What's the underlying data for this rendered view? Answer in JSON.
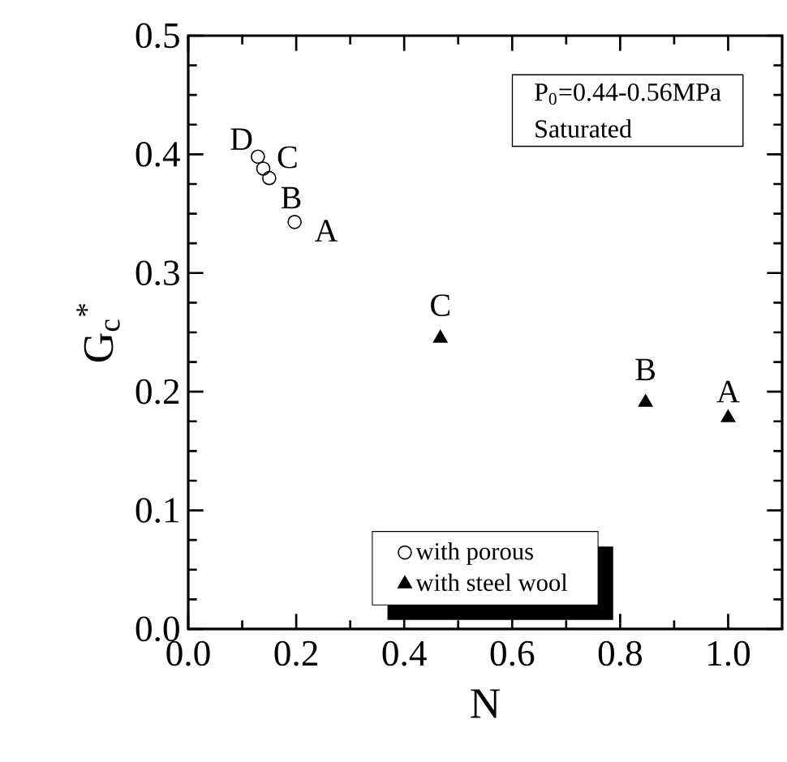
{
  "chart_data": {
    "type": "scatter",
    "xlabel": "N",
    "ylabel": "G$_{c}$$^{*}$",
    "xlim": [
      0,
      1.1
    ],
    "ylim": [
      0,
      0.5
    ],
    "xticks": [
      {
        "value": 0,
        "label": "0.0"
      },
      0.2,
      0.4,
      0.6,
      0.8,
      {
        "value": 1.0,
        "label": "1.0"
      }
    ],
    "yticks": [
      {
        "value": 0,
        "label": "0.0"
      },
      0.1,
      0.2,
      0.3,
      0.4,
      0.5
    ],
    "series": [
      {
        "name": "with porous",
        "color": "#000000",
        "marker": "circle",
        "x": [
          0.129,
          0.139,
          0.15,
          0.197
        ],
        "values": [
          0.398,
          0.388,
          0.38,
          0.343
        ]
      },
      {
        "name": "with steel wool",
        "color": "#000000",
        "marker": "triangle",
        "x": [
          0.467,
          0.847,
          1.0
        ],
        "values": [
          0.245,
          0.191,
          0.178
        ]
      }
    ],
    "annotations": [
      "P$_{0}$=0.44-0.56MPa",
      "Saturated",
      {
        "text": "D",
        "x": 0.129,
        "y": 0.398
      },
      {
        "text": "C",
        "x": 0.139,
        "y": 0.388
      },
      {
        "text": "B",
        "x": 0.15,
        "y": 0.38
      },
      {
        "text": "A",
        "x": 0.197,
        "y": 0.343
      },
      {
        "text": "C",
        "x": 0.467,
        "y": 0.245
      },
      {
        "text": "B",
        "x": 0.847,
        "y": 0.191
      },
      {
        "text": "A",
        "x": 1.0,
        "y": 0.178
      }
    ],
    "legend": "bottom",
    "grid": false
  }
}
